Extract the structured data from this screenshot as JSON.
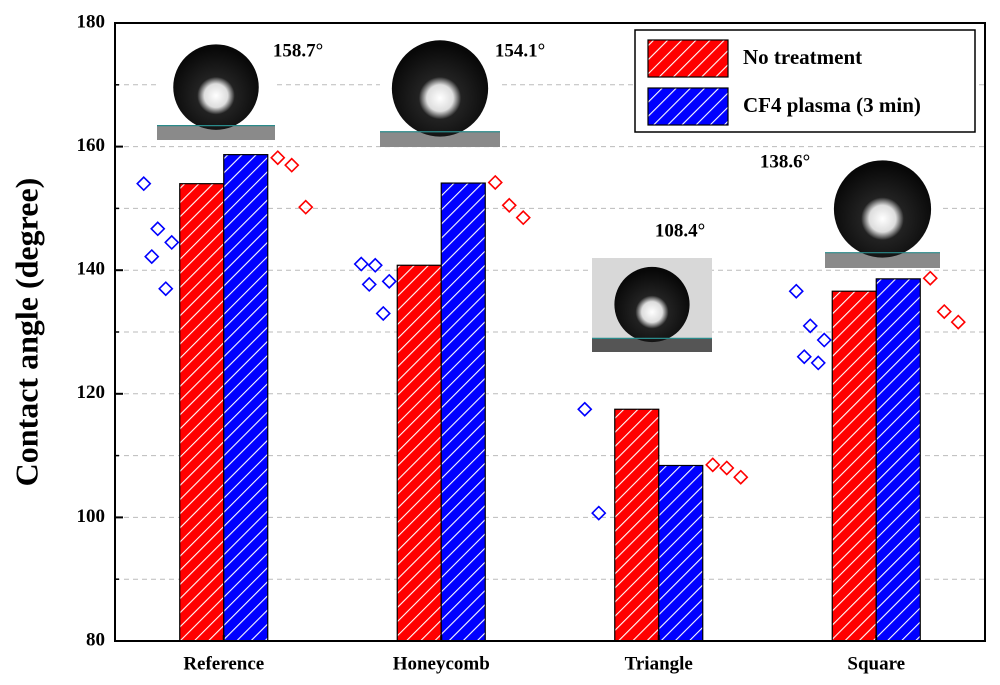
{
  "chart_data": {
    "type": "bar",
    "y_label": "Contact angle (degree)",
    "categories": [
      "Reference",
      "Honeycomb",
      "Triangle",
      "Square"
    ],
    "series": [
      {
        "name": "No treatment",
        "color": "#ff0000",
        "values": [
          154,
          140.8,
          117.5,
          136.6
        ],
        "points": [
          [
            158.2,
            157,
            150.2
          ],
          [
            154.2,
            150.5,
            148.5
          ],
          [
            108.5,
            108,
            106.5
          ],
          [
            138.7,
            133.3,
            131.6
          ]
        ]
      },
      {
        "name": "CF4 plasma (3 min)",
        "color": "#0000ff",
        "values": [
          158.7,
          154.1,
          108.4,
          138.6
        ],
        "value_labels": [
          "158.7°",
          "154.1°",
          "108.4°",
          "138.6°"
        ],
        "points": [
          [
            154,
            146.7,
            144.5,
            142.2,
            137
          ],
          [
            141,
            140.8,
            138.2,
            137.7,
            133
          ],
          [
            117.5,
            100.7
          ],
          [
            136.6,
            131,
            128.7,
            126,
            125
          ]
        ]
      }
    ],
    "ylim": [
      80,
      180
    ],
    "yticks": [
      80,
      100,
      120,
      140,
      160,
      180
    ],
    "minor_yticks": [
      90,
      110,
      130,
      150,
      170
    ],
    "grid": true,
    "legend": "upper right"
  }
}
